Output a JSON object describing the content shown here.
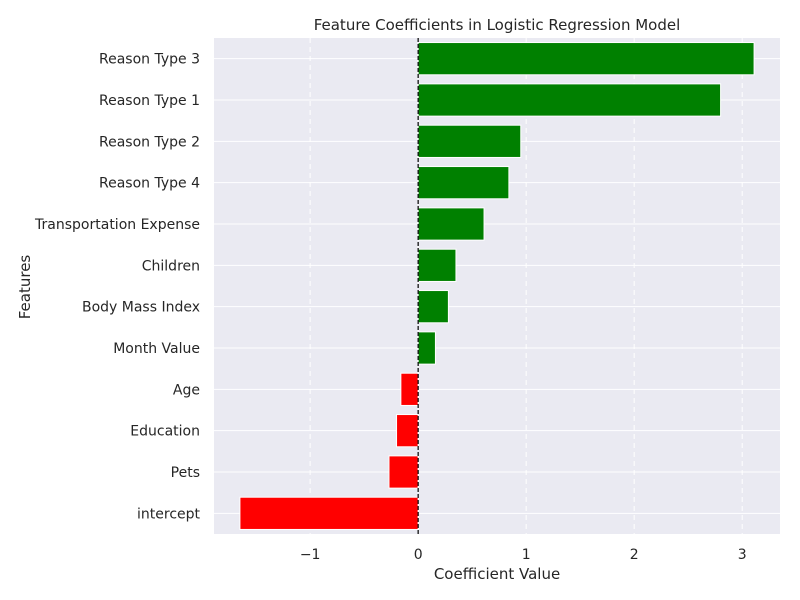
{
  "chart_data": {
    "type": "bar",
    "orientation": "horizontal",
    "title": "Feature Coefficients in Logistic Regression Model",
    "xlabel": "Coefficient Value",
    "ylabel": "Features",
    "categories": [
      "Reason Type 3",
      "Reason Type 1",
      "Reason Type 2",
      "Reason Type 4",
      "Transportation Expense",
      "Children",
      "Body Mass Index",
      "Month Value",
      "Age",
      "Education",
      "Pets",
      "intercept"
    ],
    "values": [
      3.11,
      2.8,
      0.95,
      0.84,
      0.61,
      0.35,
      0.28,
      0.16,
      -0.16,
      -0.2,
      -0.27,
      -1.65
    ],
    "xlim": [
      -1.89,
      3.35
    ],
    "xticks": [
      -1,
      0,
      1,
      2,
      3
    ],
    "xtick_labels": [
      "−1",
      "0",
      "1",
      "2",
      "3"
    ],
    "reference_line": 0,
    "grid": true,
    "colors": {
      "positive": "#008000",
      "negative": "#ff0000",
      "background": "#eaeaf2",
      "grid": "#ffffff",
      "text": "#262626"
    }
  }
}
